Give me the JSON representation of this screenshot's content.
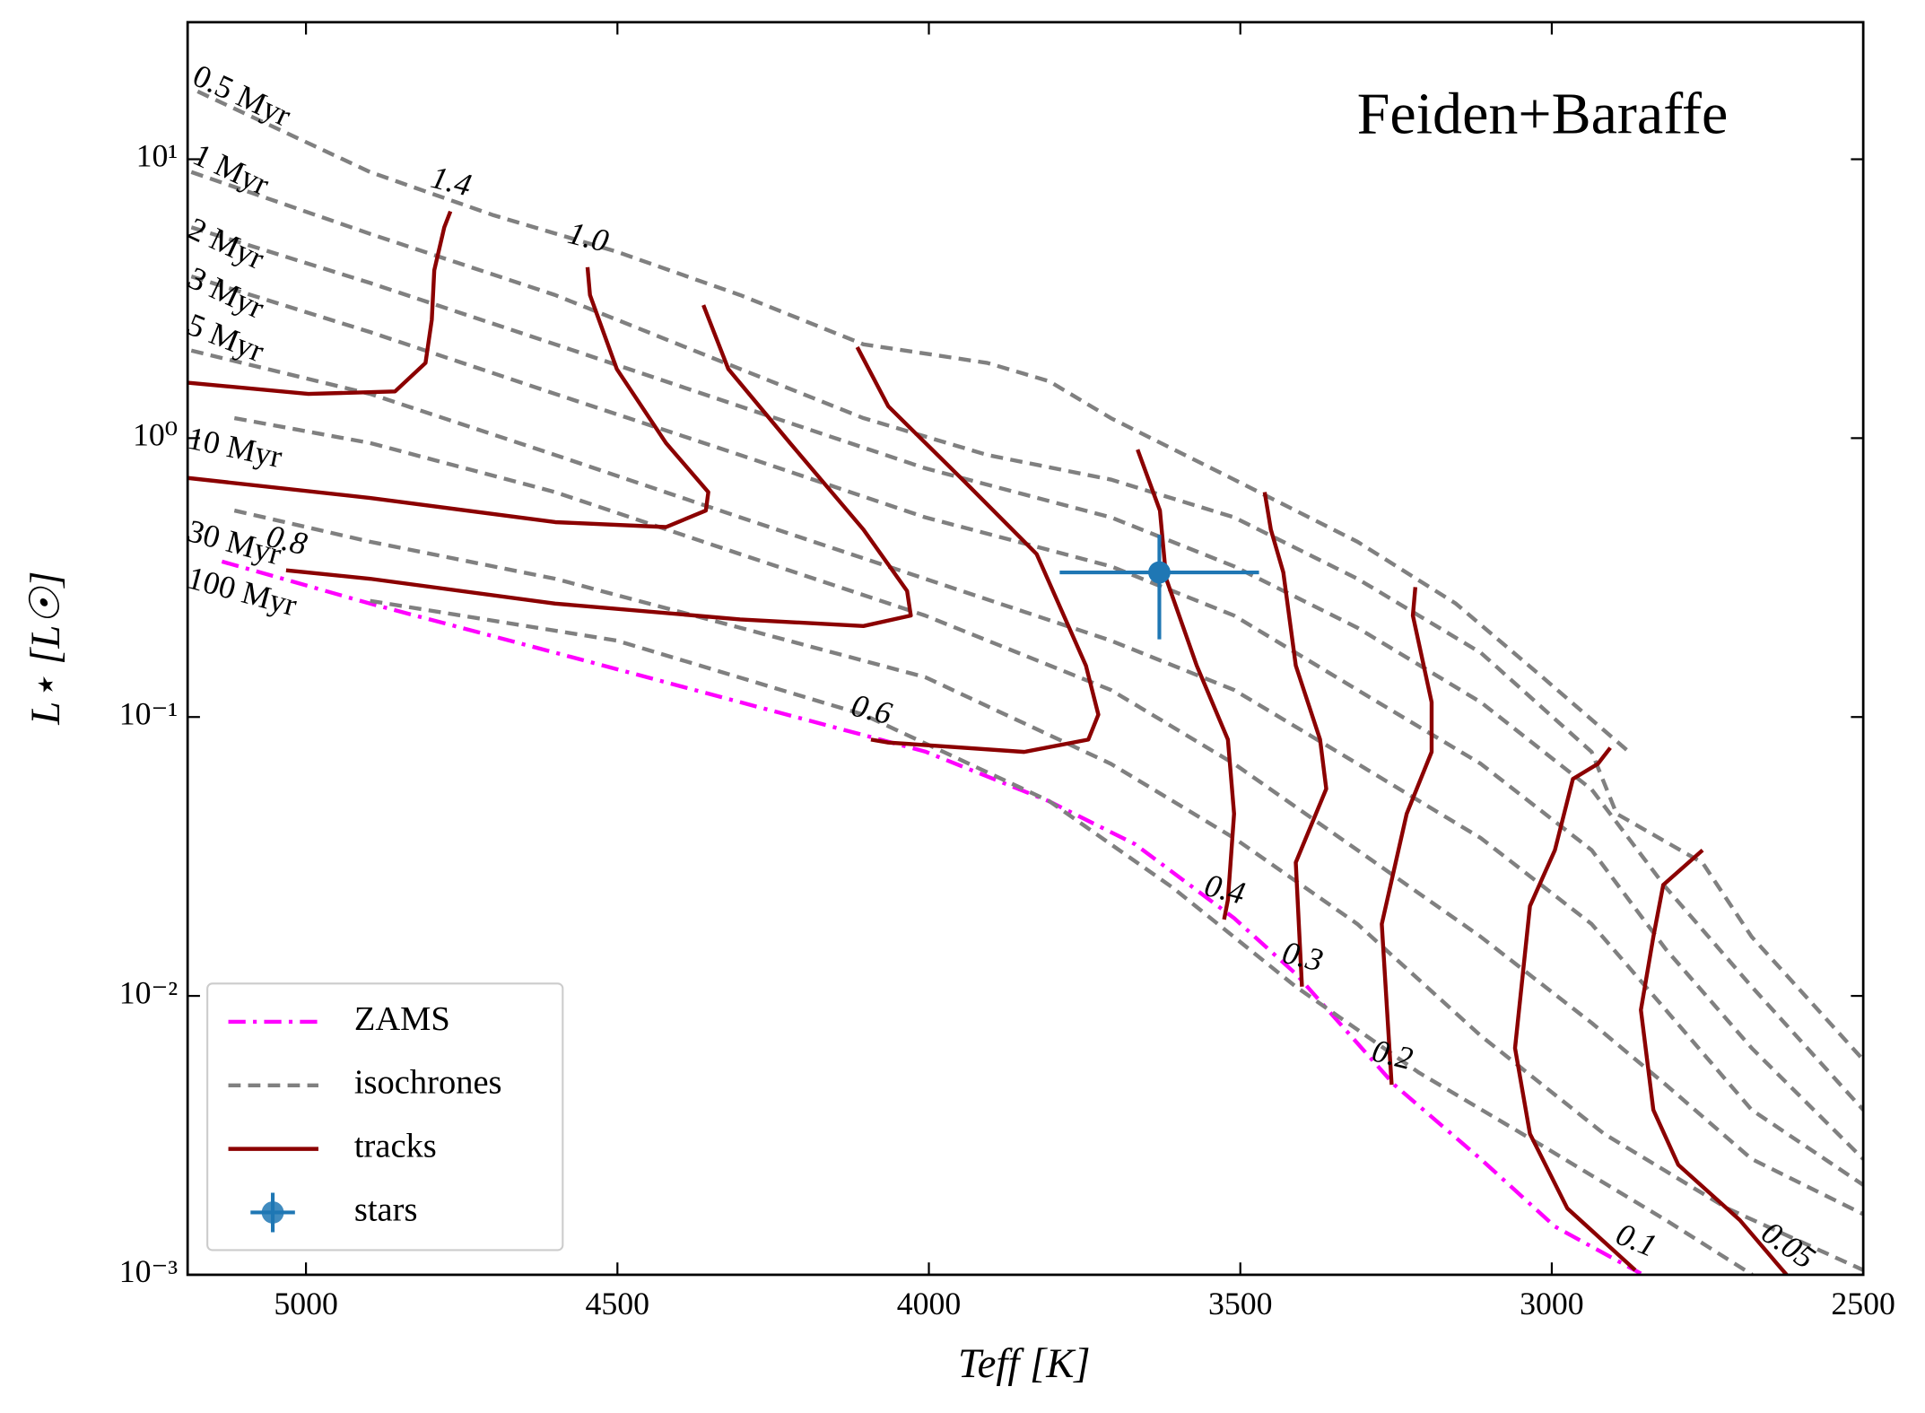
{
  "chart_data": {
    "type": "line",
    "annotation": "Feiden+Baraffe",
    "xlabel": "Teff [K]",
    "ylabel": "L⋆ [L☉]",
    "xlim": [
      5190,
      2500
    ],
    "ylim": [
      0.001,
      31
    ],
    "log_y": true,
    "xticks": [
      5000,
      4500,
      4000,
      3500,
      3000,
      2500
    ],
    "yticks": [
      {
        "value": 0.001,
        "label": "10⁻³"
      },
      {
        "value": 0.01,
        "label": "10⁻²"
      },
      {
        "value": 0.1,
        "label": "10⁻¹"
      },
      {
        "value": 1,
        "label": "10⁰"
      },
      {
        "value": 10,
        "label": "10¹"
      }
    ],
    "legend": "lower left",
    "series": [
      {
        "name": "ZAMS",
        "style": "dashdot",
        "color": "#ff00ff",
        "lines": [
          {
            "x": [
              5135,
              4897,
              4600,
              4303,
              4006,
              3808,
              3669,
              3510,
              3411,
              3253,
              3114,
              2995,
              2857
            ],
            "y": [
              0.361,
              0.255,
              0.17,
              0.113,
              0.0752,
              0.05,
              0.035,
              0.019,
              0.012,
              0.0048,
              0.0026,
              0.00149,
              0.00101
            ]
          }
        ]
      },
      {
        "name": "isochrones",
        "style": "dashed",
        "color": "#808080",
        "lines": [
          {
            "label": "0.5 Myr",
            "x": [
              5174,
              4897,
              4699,
              4501,
              4303,
              4105,
              3906,
              3807,
              3708,
              3510,
              3312,
              3154,
              3015,
              2876
            ],
            "y": [
              17.5,
              9.0,
              6.3,
              4.66,
              3.26,
              2.17,
              1.86,
              1.6,
              1.18,
              0.71,
              0.425,
              0.255,
              0.139,
              0.075
            ]
          },
          {
            "label": "1 Myr",
            "x": [
              5184,
              4897,
              4600,
              4303,
              4105,
              3906,
              3708,
              3510,
              3312,
              3114,
              2936,
              2896,
              2758,
              2679,
              2500
            ],
            "y": [
              9.0,
              5.4,
              3.26,
              1.77,
              1.18,
              0.87,
              0.71,
              0.52,
              0.313,
              0.17,
              0.075,
              0.045,
              0.03,
              0.0163,
              0.0059
            ]
          },
          {
            "label": "2 Myr",
            "x": [
              5184,
              4897,
              4600,
              4303,
              4006,
              3708,
              3510,
              3312,
              3114,
              2936,
              2817,
              2679,
              2500
            ],
            "y": [
              5.7,
              3.6,
              2.17,
              1.3,
              0.78,
              0.52,
              0.347,
              0.209,
              0.113,
              0.055,
              0.0245,
              0.0108,
              0.0039
            ]
          },
          {
            "label": "3 Myr",
            "x": [
              5184,
              4897,
              4600,
              4303,
              4006,
              3708,
              3510,
              3312,
              3114,
              2936,
              2817,
              2679,
              2500
            ],
            "y": [
              3.8,
              2.4,
              1.44,
              0.87,
              0.52,
              0.347,
              0.231,
              0.125,
              0.068,
              0.0333,
              0.0147,
              0.0065,
              0.0026
            ]
          },
          {
            "label": "5 Myr",
            "x": [
              5184,
              4897,
              4600,
              4303,
              4006,
              3708,
              3510,
              3312,
              3114,
              2936,
              2817,
              2679,
              2500
            ],
            "y": [
              2.06,
              1.44,
              0.87,
              0.52,
              0.313,
              0.188,
              0.125,
              0.068,
              0.0368,
              0.0181,
              0.0089,
              0.0039,
              0.0021
            ]
          },
          {
            "label": "10 Myr",
            "x": [
              5115,
              4897,
              4600,
              4303,
              4006,
              3708,
              3510,
              3312,
              3114,
              2936,
              2817,
              2679,
              2500
            ],
            "y": [
              1.18,
              0.96,
              0.64,
              0.384,
              0.231,
              0.125,
              0.068,
              0.0333,
              0.0163,
              0.008,
              0.0048,
              0.0026,
              0.00165
            ]
          },
          {
            "label": "30 Myr",
            "x": [
              5115,
              4897,
              4600,
              4303,
              4006,
              3708,
              3510,
              3312,
              3114,
              2916,
              2718,
              2500
            ],
            "y": [
              0.55,
              0.425,
              0.313,
              0.209,
              0.139,
              0.068,
              0.0368,
              0.0181,
              0.0072,
              0.0032,
              0.00173,
              0.00104
            ]
          },
          {
            "label": "100 Myr",
            "x": [
              4897,
              4501,
              4105,
              3807,
              3609,
              3411,
              3213,
              3015,
              2817,
              2678
            ],
            "y": [
              0.261,
              0.188,
              0.102,
              0.05,
              0.0245,
              0.0108,
              0.0053,
              0.0029,
              0.00157,
              0.001
            ]
          }
        ]
      },
      {
        "name": "tracks",
        "style": "solid",
        "color": "#8b0000",
        "lines": [
          {
            "label": "1.4",
            "x": [
              5190,
              4996,
              4857,
              4808,
              4798,
              4794,
              4778,
              4768
            ],
            "y": [
              1.58,
              1.44,
              1.47,
              1.86,
              2.66,
              4.0,
              5.7,
              6.5
            ]
          },
          {
            "label": "1.0",
            "x": [
              5190,
              4897,
              4600,
              4422,
              4358,
              4354,
              4422,
              4501,
              4544,
              4548
            ],
            "y": [
              0.72,
              0.61,
              0.5,
              0.48,
              0.55,
              0.64,
              0.96,
              1.77,
              3.26,
              4.1
            ]
          },
          {
            "label": "0.8",
            "x": [
              4362,
              4322,
              4223,
              4105,
              4035,
              4029,
              4105,
              4303,
              4600,
              4897,
              5032
            ],
            "y": [
              3.0,
              1.77,
              0.96,
              0.47,
              0.283,
              0.231,
              0.212,
              0.224,
              0.255,
              0.313,
              0.336
            ]
          },
          {
            "label": "0.6",
            "x": [
              4115,
              4065,
              3946,
              3827,
              3748,
              3728,
              3744,
              3847,
              4065,
              4093
            ],
            "y": [
              2.12,
              1.3,
              0.71,
              0.384,
              0.153,
              0.102,
              0.083,
              0.075,
              0.081,
              0.083
            ]
          },
          {
            "label": "0.4",
            "x": [
              3665,
              3629,
              3619,
              3570,
              3520,
              3510,
              3520,
              3526
            ],
            "y": [
              0.91,
              0.55,
              0.313,
              0.153,
              0.083,
              0.045,
              0.0221,
              0.0188
            ]
          },
          {
            "label": "0.3",
            "x": [
              3461,
              3451,
              3431,
              3411,
              3372,
              3362,
              3411,
              3401
            ],
            "y": [
              0.64,
              0.47,
              0.33,
              0.153,
              0.083,
              0.0553,
              0.0301,
              0.0108
            ]
          },
          {
            "label": "0.2",
            "x": [
              3219,
              3223,
              3193,
              3193,
              3233,
              3273,
              3257
            ],
            "y": [
              0.292,
              0.231,
              0.113,
              0.075,
              0.045,
              0.0181,
              0.0048
            ]
          },
          {
            "label": "0.1",
            "x": [
              2906,
              2926,
              2966,
              2995,
              3035,
              3059,
              3035,
              2975,
              2866
            ],
            "y": [
              0.0775,
              0.0679,
              0.06,
              0.0333,
              0.021,
              0.0065,
              0.0032,
              0.00173,
              0.00104
            ]
          },
          {
            "label": "0.05",
            "x": [
              2758,
              2821,
              2837,
              2857,
              2837,
              2797,
              2698,
              2639,
              2623
            ],
            "y": [
              0.0333,
              0.025,
              0.0163,
              0.0089,
              0.0039,
              0.00248,
              0.00157,
              0.0011,
              0.001
            ]
          }
        ]
      },
      {
        "name": "stars",
        "style": "errorbar",
        "color": "#1f77b4",
        "x": [
          3630
        ],
        "y": [
          0.33
        ],
        "xerr": [
          160
        ],
        "yerr_minus": [
          0.14
        ],
        "yerr_plus": [
          0.12
        ]
      }
    ]
  }
}
